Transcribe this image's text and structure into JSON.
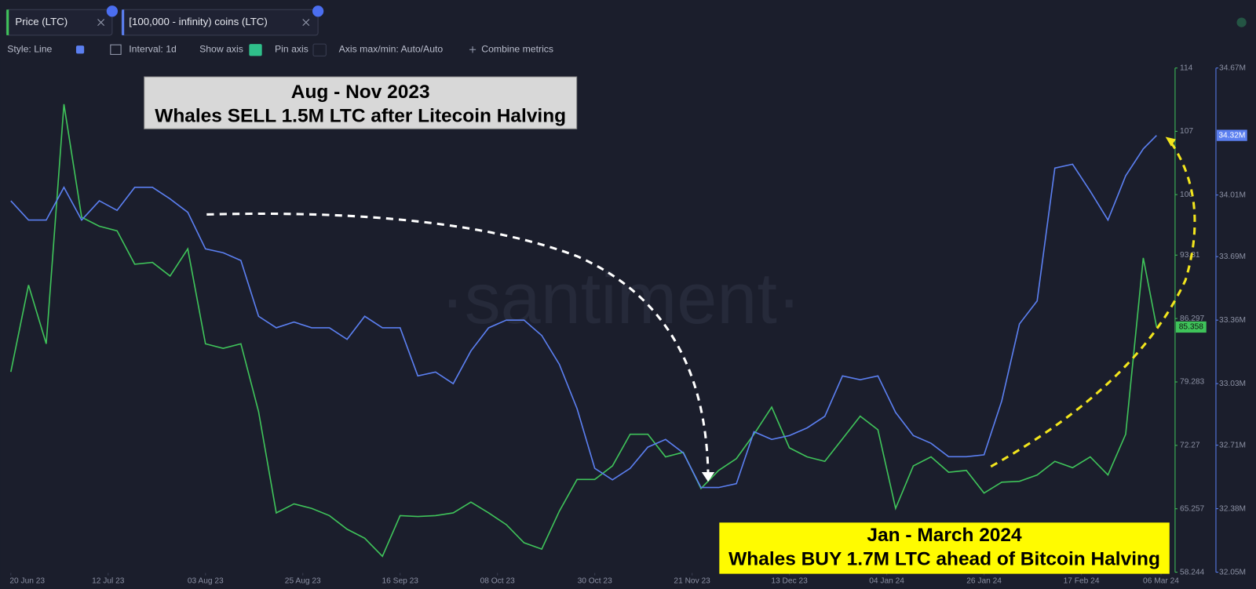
{
  "tabs": [
    "Price (LTC)",
    "[100,000 - infinity) coins (LTC)"
  ],
  "toolbar": [
    "Style: Line",
    "Interval: 1d",
    "Show axis",
    "Pin axis",
    "Axis max/min: Auto/Auto",
    "Combine metrics"
  ],
  "watermark": "·santiment·",
  "chart_data": {
    "type": "line",
    "annotations": [
      [
        "Aug - Nov 2023",
        "Whales SELL 1.5M LTC after Litecoin Halving"
      ],
      [
        "Jan - March 2024",
        "Whales BUY 1.7M LTC ahead of Bitcoin Halving"
      ]
    ],
    "x": [
      "2023-06-20",
      "2023-06-24",
      "2023-06-28",
      "2023-07-02",
      "2023-07-06",
      "2023-07-10",
      "2023-07-14",
      "2023-07-18",
      "2023-07-22",
      "2023-07-26",
      "2023-07-30",
      "2023-08-03",
      "2023-08-07",
      "2023-08-11",
      "2023-08-15",
      "2023-08-19",
      "2023-08-23",
      "2023-08-27",
      "2023-08-31",
      "2023-09-04",
      "2023-09-08",
      "2023-09-12",
      "2023-09-16",
      "2023-09-20",
      "2023-09-24",
      "2023-09-28",
      "2023-10-02",
      "2023-10-06",
      "2023-10-10",
      "2023-10-14",
      "2023-10-18",
      "2023-10-22",
      "2023-10-26",
      "2023-10-30",
      "2023-11-03",
      "2023-11-07",
      "2023-11-11",
      "2023-11-15",
      "2023-11-19",
      "2023-11-23",
      "2023-11-27",
      "2023-12-01",
      "2023-12-05",
      "2023-12-09",
      "2023-12-13",
      "2023-12-17",
      "2023-12-21",
      "2023-12-25",
      "2023-12-29",
      "2024-01-02",
      "2024-01-06",
      "2024-01-10",
      "2024-01-14",
      "2024-01-18",
      "2024-01-22",
      "2024-01-26",
      "2024-01-30",
      "2024-02-03",
      "2024-02-07",
      "2024-02-11",
      "2024-02-15",
      "2024-02-19",
      "2024-02-23",
      "2024-02-27",
      "2024-03-02",
      "2024-03-05"
    ],
    "xlim": [
      "2023-06-19",
      "2024-03-09"
    ],
    "xticks": [
      {
        "value": "2023-06-20",
        "label": "20 Jun 23"
      },
      {
        "value": "2023-07-12",
        "label": "12 Jul 23"
      },
      {
        "value": "2023-08-03",
        "label": "03 Aug 23"
      },
      {
        "value": "2023-08-25",
        "label": "25 Aug 23"
      },
      {
        "value": "2023-09-16",
        "label": "16 Sep 23"
      },
      {
        "value": "2023-10-08",
        "label": "08 Oct 23"
      },
      {
        "value": "2023-10-30",
        "label": "30 Oct 23"
      },
      {
        "value": "2023-11-21",
        "label": "21 Nov 23"
      },
      {
        "value": "2023-12-13",
        "label": "13 Dec 23"
      },
      {
        "value": "2024-01-04",
        "label": "04 Jan 24"
      },
      {
        "value": "2024-01-26",
        "label": "26 Jan 24"
      },
      {
        "value": "2024-02-17",
        "label": "17 Feb 24"
      },
      {
        "value": "2024-03-06",
        "label": "06 Mar 24"
      }
    ],
    "ylim": [
      58.244,
      114
    ],
    "yticks": [
      114,
      107,
      100,
      93.31,
      86.297,
      79.283,
      72.27,
      65.257,
      58.244
    ],
    "y2lim": [
      32050000,
      34670000
    ],
    "y2ticks": [
      {
        "value": 34670000,
        "label": "34.67M"
      },
      {
        "value": 34010000,
        "label": "34.01M"
      },
      {
        "value": 33690000,
        "label": "33.69M"
      },
      {
        "value": 33360000,
        "label": "33.36M"
      },
      {
        "value": 33030000,
        "label": "33.03M"
      },
      {
        "value": 32710000,
        "label": "32.71M"
      },
      {
        "value": 32380000,
        "label": "32.38M"
      },
      {
        "value": 32050000,
        "label": "32.05M"
      }
    ],
    "series": [
      {
        "name": "Price (LTC)",
        "color": "#3fc35a",
        "current": {
          "value": 85.358,
          "label": "85.358"
        },
        "values": [
          80.4,
          90,
          83.5,
          110,
          97.5,
          96.5,
          96,
          92.3,
          92.5,
          91,
          94,
          83.5,
          83,
          83.5,
          76,
          64.8,
          65.8,
          65.3,
          64.5,
          63,
          62,
          60,
          64.5,
          64.4,
          64.5,
          64.8,
          66,
          64.8,
          63.5,
          61.5,
          60.8,
          65,
          68.5,
          68.5,
          70,
          73.5,
          73.5,
          71,
          71.5,
          67.5,
          69.5,
          70.8,
          73.5,
          76.5,
          72,
          71,
          70.5,
          73,
          75.5,
          74,
          65.3,
          70,
          71,
          69.3,
          69.5,
          67,
          68.2,
          68.3,
          69,
          70.5,
          69.8,
          71,
          69,
          73.5,
          93,
          85.358
        ]
      },
      {
        "name": "[100,000 - infinity) coins (LTC)",
        "color": "#5b7ff0",
        "axis": "y2",
        "current": {
          "value": 34320000,
          "label": "34.32M"
        },
        "values": [
          33980000,
          33880000,
          33880000,
          34050000,
          33880000,
          33980000,
          33930000,
          34050000,
          34050000,
          33990000,
          33920000,
          33730000,
          33710000,
          33670000,
          33380000,
          33320000,
          33350000,
          33320000,
          33320000,
          33260000,
          33380000,
          33320000,
          33320000,
          33070000,
          33090000,
          33030000,
          33200000,
          33320000,
          33360000,
          33360000,
          33280000,
          33130000,
          32900000,
          32590000,
          32530000,
          32590000,
          32700000,
          32740000,
          32670000,
          32490000,
          32490000,
          32510000,
          32780000,
          32740000,
          32760000,
          32800000,
          32860000,
          33070000,
          33050000,
          33070000,
          32880000,
          32760000,
          32720000,
          32650000,
          32650000,
          32660000,
          32940000,
          33340000,
          33460000,
          34150000,
          34170000,
          34030000,
          33880000,
          34110000,
          34250000,
          34320000
        ]
      }
    ]
  }
}
